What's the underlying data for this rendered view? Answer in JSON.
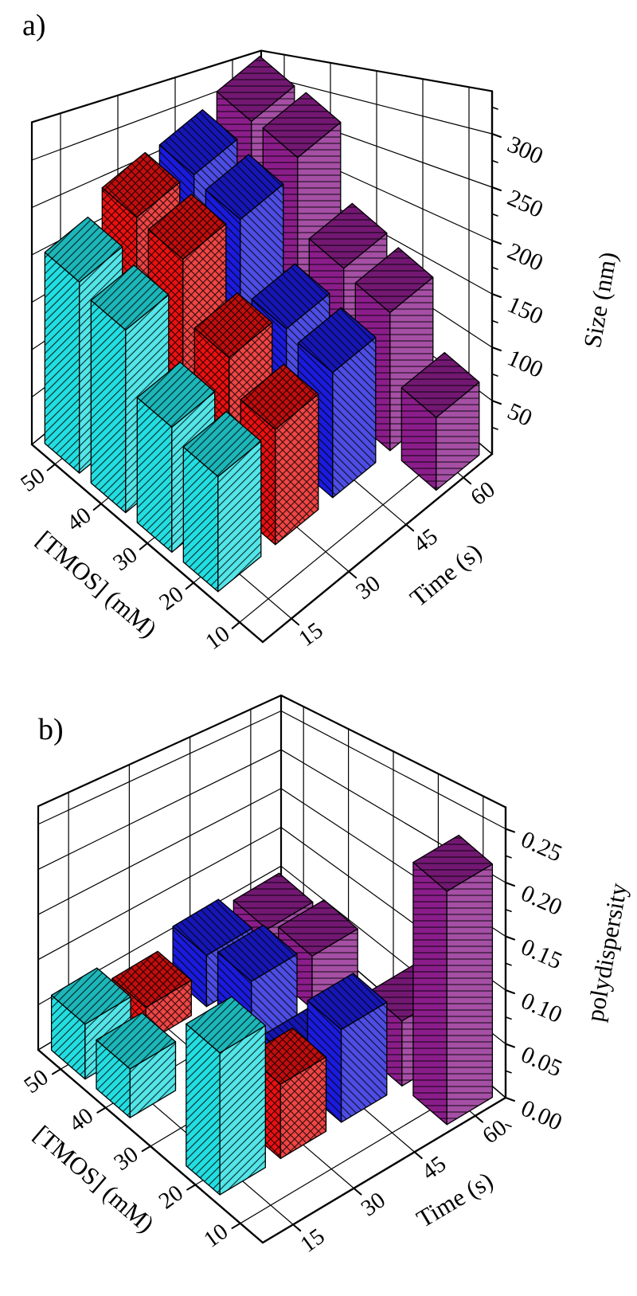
{
  "figure": {
    "background": "#ffffff",
    "panels": [
      {
        "id": "a",
        "label": "a)"
      },
      {
        "id": "b",
        "label": "b)"
      }
    ]
  },
  "chart_data": [
    {
      "panel": "a",
      "type": "bar3d",
      "title": "",
      "x_axis": {
        "label": "[TMOS] (mM)",
        "ticks": [
          "50",
          "40",
          "30",
          "20",
          "10"
        ],
        "values": [
          50,
          40,
          30,
          20,
          10
        ]
      },
      "y_axis": {
        "label": "Time (s)",
        "ticks": [
          "15",
          "30",
          "45",
          "60"
        ],
        "values": [
          15,
          30,
          45,
          60
        ]
      },
      "z_axis": {
        "label": "Size (nm)",
        "ticks": [
          "50",
          "100",
          "150",
          "200",
          "250",
          "300"
        ],
        "values": [
          50,
          100,
          150,
          200,
          250,
          300
        ],
        "range": [
          0,
          340
        ]
      },
      "grid": true,
      "series": [
        {
          "name": "15 s",
          "time": 15,
          "color": "#22dee1",
          "hatch": "diagonal-up",
          "points": [
            {
              "x": 50,
              "z": 205
            },
            {
              "x": 40,
              "z": 185
            },
            {
              "x": 30,
              "z": 120
            },
            {
              "x": 20,
              "z": 105
            }
          ]
        },
        {
          "name": "30 s",
          "time": 30,
          "color": "#ec1111",
          "hatch": "cross",
          "points": [
            {
              "x": 50,
              "z": 245
            },
            {
              "x": 40,
              "z": 225
            },
            {
              "x": 30,
              "z": 150
            },
            {
              "x": 20,
              "z": 110
            }
          ]
        },
        {
          "name": "45 s",
          "time": 45,
          "color": "#1b1bdd",
          "hatch": "diagonal-down",
          "points": [
            {
              "x": 50,
              "z": 265
            },
            {
              "x": 40,
              "z": 235
            },
            {
              "x": 30,
              "z": 140
            },
            {
              "x": 20,
              "z": 125
            }
          ]
        },
        {
          "name": "60 s",
          "time": 60,
          "color": "#8b1d8b",
          "hatch": "horizontal",
          "points": [
            {
              "x": 50,
              "z": 305
            },
            {
              "x": 40,
              "z": 275
            },
            {
              "x": 30,
              "z": 165
            },
            {
              "x": 20,
              "z": 145
            },
            {
              "x": 10,
              "z": 70
            }
          ]
        }
      ]
    },
    {
      "panel": "b",
      "type": "bar3d",
      "title": "",
      "x_axis": {
        "label": "[TMOS] (mM)",
        "ticks": [
          "50",
          "40",
          "30",
          "20",
          "10"
        ],
        "values": [
          50,
          40,
          30,
          20,
          10
        ]
      },
      "y_axis": {
        "label": "Time (s)",
        "ticks": [
          "15",
          "30",
          "45",
          "60"
        ],
        "values": [
          15,
          30,
          45,
          60
        ]
      },
      "z_axis": {
        "label": "polydispersity",
        "ticks": [
          "0.00",
          "0.05",
          "0.10",
          "0.15",
          "0.20",
          "0.25"
        ],
        "values": [
          0,
          0.05,
          0.1,
          0.15,
          0.2,
          0.25
        ],
        "range": [
          0,
          0.27
        ]
      },
      "grid": true,
      "series": [
        {
          "name": "15 s",
          "time": 15,
          "color": "#22dee1",
          "hatch": "diagonal-up",
          "points": [
            {
              "x": 50,
              "z": 0.06
            },
            {
              "x": 40,
              "z": 0.05
            },
            {
              "x": 20,
              "z": 0.13
            }
          ]
        },
        {
          "name": "30 s",
          "time": 30,
          "color": "#ec1111",
          "hatch": "cross",
          "points": [
            {
              "x": 50,
              "z": 0.04
            },
            {
              "x": 20,
              "z": 0.07
            }
          ]
        },
        {
          "name": "45 s",
          "time": 45,
          "color": "#1b1bdd",
          "hatch": "diagonal-down",
          "points": [
            {
              "x": 50,
              "z": 0.06
            },
            {
              "x": 40,
              "z": 0.07
            },
            {
              "x": 30,
              "z": 0.02
            },
            {
              "x": 20,
              "z": 0.09
            }
          ]
        },
        {
          "name": "60 s",
          "time": 60,
          "color": "#8b1d8b",
          "hatch": "horizontal",
          "points": [
            {
              "x": 50,
              "z": 0.05
            },
            {
              "x": 40,
              "z": 0.06
            },
            {
              "x": 20,
              "z": 0.065
            },
            {
              "x": 10,
              "z": 0.22
            }
          ]
        }
      ]
    }
  ]
}
